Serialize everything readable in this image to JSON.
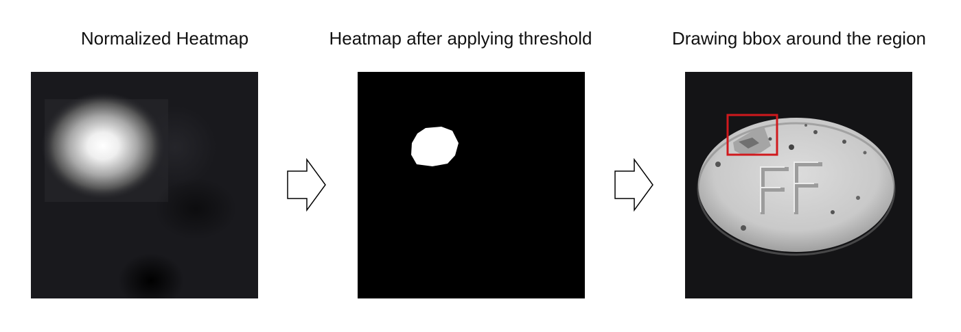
{
  "panels": [
    {
      "title": "Normalized Heatmap",
      "image": "grayscale heatmap with bright blob upper-left"
    },
    {
      "title": "Heatmap after applying threshold",
      "image": "binary mask with single white blob"
    },
    {
      "title": "Drawing bbox around the region",
      "image": "white pill with FF imprint and bounding box"
    }
  ],
  "arrows": [
    {
      "icon": "right-arrow-icon"
    },
    {
      "icon": "right-arrow-icon"
    }
  ],
  "colors": {
    "bbox": "#d0191d",
    "background": "#ffffff",
    "mask": "#000000"
  }
}
